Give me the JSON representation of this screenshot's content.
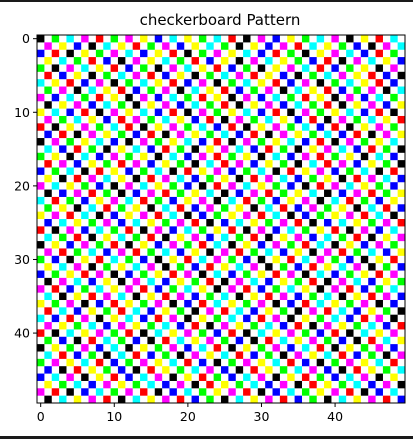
{
  "chart_data": {
    "type": "heatmap",
    "title": "checkerboard Pattern",
    "xlabel": "",
    "ylabel": "",
    "grid": false,
    "rows": 50,
    "cols": 50,
    "xlim": [
      -0.5,
      49.5
    ],
    "ylim": [
      49.5,
      -0.5
    ],
    "x_ticks": [
      0,
      10,
      20,
      30,
      40
    ],
    "y_ticks": [
      0,
      10,
      20,
      30,
      40
    ],
    "palette": {
      "K": "#000000",
      "R": "#ff0000",
      "G": "#00ff00",
      "B": "#0000ff",
      "C": "#00ffff",
      "M": "#ff00ff",
      "Y": "#ffff00",
      "W": "#ffffff"
    },
    "values": [
      "KWGWCWMWRWGWMWYWBWCWYWGWCWRWKWMWBWYWGWCWMWKWYWRWCW",
      "WMWYWBWKWCWYWRWGWMWBWYWCWGWKWYWBWMWRWCWYWGWBWKWMWC",
      "BWRWKWYWGWMWCWBWYWRWKWGWMWYWCWBWRWGWKWYWMWCWBWRWGW",
      "WYWCWGWRWBWKWMWYWCWGWRWBWYWKWMWCWYWGWBWRWKWMWCWYWB",
      "GWKWMWCWYWRWBWGWKWMWCWYWRWBWGWKWYWMWCWRWBWGWYWKWMW",
      "WRWBWYWKWGWCWMWRWBWYWKWGWCWMWRWYWBWKWGWCWMWYWRWBWK",
      "CWYWRWBWMWKWGWCWYWRWBWMWKWGWCWYWRWBWMWKWGWCWYWRWBW",
      "WGWMWKWCWYWRWBWGWMWKWCWYWRWBWGWMWKWCWYWRWBWGWMWKWC",
      "MWBWCWGWRWYWKWMWBWCWGWRWYWKWMWBWCWGWRWYWKWMWBWCWGW",
      "WKWYWMWBWCWGWKWYWMWBWCWGWRWKWYWMWBWCWGWRWKWYWMWBWY",
      "YWCWBWRWKWMWYWCWBWRWKWMWGWYWCWBWRWKWMWGWYWCWBWRWKW",
      "WMWGWCWYWBWRWMWGWCWYWBWRWKWMWGWCWYWBWRWKWMWGWCWYWR",
      "RWKWYWMWGWCWRWKWYWMWGWCWBWRWKWYWMWGWCWBWRWKWYWMWGW",
      "WBWRWKWMWYWGWBWRWKWMWYWGWCWBWRWKWMWYWGWCWBWRWKWMWY",
      "KWMWGWYWCWBWKWMWGWYWCWBWRWKWMWGWYWCWBWRWKWMWGWYWCW",
      "WCWBWRWGWKWYWCWBWRWGWKWYWMWCWBWRWGWKWYWMWCWBWRWGWK",
      "GWYWKWCWBWMWGWYWKWCWBWMWRWGWYWKWCWBWMWRWGWYWKWCWBW",
      "WRWMWBWYWGWRWMWBWYWGWKWCWRWMWBWYWGWKWCWRWMWBWYWGWK",
      "BWGWCWKWRWYWBWGWCWKWRWYWMWBWGWCWKWRWYWMWBWGWCWKWRW",
      "WYWKWRWMWCWYWKWRWMWCWBWGWYWKWRWMWCWBWGWYWKWRWMWCWB",
      "MWCWYWGWBWKWMWCWYWGWBWKWRWMWCWYWGWBWKWRWMWCWYWGWBW",
      "WKWBWMWRWGWKWBWMWRWGWYWCWKWBWMWRWGWYWCWKWBWMWRWGWY",
      "CWRWGWBWYWMWCWRWGWBWYWMWKWCWRWGWBWYWMWKWCWRWGWBWYW",
      "WGWYWKWCWRWGWYWKWCWRWBWMWGWYWKWCWRWBWMWGWYWKWCWRWB",
      "YWMWRWCWKWBWYWMWRWCWKWBWGWYWMWRWCWKWBWGWYWMWRWCWKW",
      "WBWCWYWGWMWBWCWYWGWMWRWKWBWCWYWGWMWRWKWBWCWYWGWMWR",
      "RWKWMWBWCWGWRWKWMWBWCWGWYWRWKWMWBWCWGWYWRWKWMWBWCW",
      "WCWGWRWKWYWCWGWRWKWYWMWBWCWGWRWKWYWMWBWCWGWRWKWYWM",
      "KWYWBWMWGWRWKWYWBWMWGWRWCWKWYWBWMWGWRWCWKWYWBWMWGW",
      "WMWRWGWCWBWMWRWGWCWBWYWKWMWRWGWCWBWYWKWMWRWGWCWBWY",
      "GWBWKWYWRWCWGWBWKWYWRWCWMWGWBWKWYWRWCWMWGWBWKWYWRW",
      "WYWCWMWKWGWYWCWMWKWGWBWRWYWCWMWKWGWBWRWYWCWMWKWGWB",
      "BWGWYWRWMWKWBWGWYWRWMWKWCWBWGWYWRWMWKWCWBWGWYWRWMW",
      "WKWMWCWBWYWKWMWCWBWYWGWRWKWMWCWBWYWGWRWKWMWCWBWYWG",
      "MWRWBWGWCWYWMWRWBWGWCWYWKWMWRWBWGWCWYWKWMWRWBWGWCW",
      "WCWKWYWRWMWCWKWYWRWMWBWGWCWKWYWRWMWBWGWCWKWYWRWMWB",
      "YWGWMWKWBWRWYWGWMWKWBWRWCWYWGWMWKWBWRWCWYWGWMWKWBW",
      "WRWCWBWYWGWRWCWBWYWGWKWMWRWCWBWYWGWKWMWRWCWBWYWGWK",
      "CWBWRWMWKWYWCWBWRWMWKWYWGWCWBWRWMWKWYWGWCWBWRWMWKW",
      "WMWYWGWCWBWMWYWGWCWBWRWKWMWYWGWCWBWRWKWMWYWGWCWBWR",
      "RWKWCWYWMWGWRWKWCWYWMWGWBWRWKWCWYWMWGWBWRWKWCWYWMW",
      "WGWBWKWRWCWGWBWKWRWCWYWMWGWBWKWRWCWYWMWGWBWKWRWCWY",
      "KWYWGWMWBWCWKWYWGWMWBWCWRWKWYWGWMWBWCWRWKWYWGWMWBW",
      "WCWRWBWGWKWCWRWBWGWKWMWYWCWRWBWGWKWMWYWCWRWBWGWKWM",
      "GWMWYWCWRWBWGWMWYWCWRWBWKWGWMWYWCWRWBWKWGWMWYWCWRW",
      "WBWKWRWYWGWBWKWRWYWGWCWMWBWKWRWYWGWCWMWBWKWRWYWGWC",
      "BWCWMWKWYWRWBWCWMWKWYWRWGWBWCWMWKWYWRWGWBWCWMWKWYW",
      "WYWGWCWBWMWYWGWCWBWMWKWRWYWGWCWBWMWKWRWYWGWCWBWMWK",
      "MWRWKWBWCWGWMWRWKWBWCWGWYWMWRWKWBWCWGWYWMWRWKWBWCW",
      "WKWCWYWMWRWKWCWYWMWRWBWGWKWCWYWMWRWBWGWKWCWYWMWRWB"
    ]
  }
}
